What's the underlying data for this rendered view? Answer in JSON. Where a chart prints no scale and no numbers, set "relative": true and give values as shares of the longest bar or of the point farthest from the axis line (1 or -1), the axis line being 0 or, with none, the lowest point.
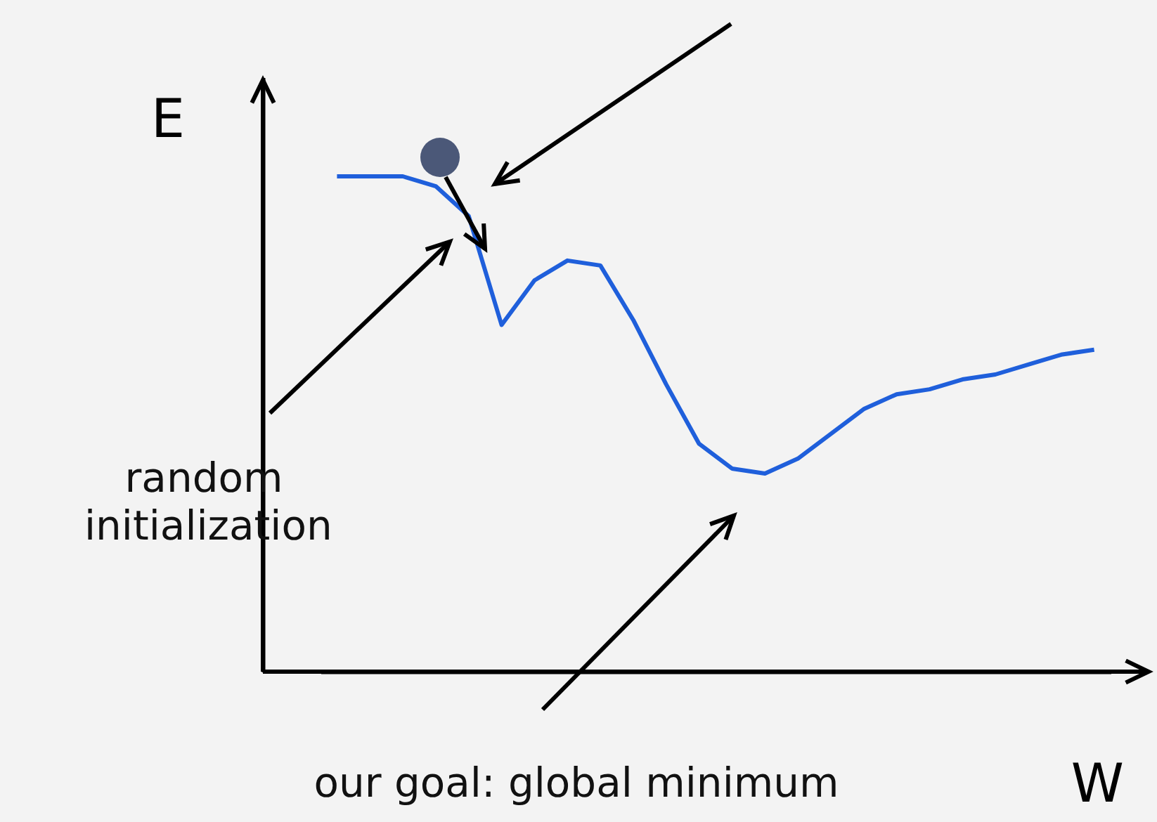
{
  "chart_data": {
    "type": "line",
    "relative": true,
    "xlabel": "W",
    "ylabel": "E",
    "grid": false,
    "categories": [
      null,
      null,
      null,
      null,
      null,
      null,
      null,
      null,
      null,
      null,
      null,
      null,
      null,
      null,
      null,
      null,
      null,
      null,
      null,
      null,
      null,
      null,
      null,
      null
    ],
    "series": [
      {
        "color": "#1f5fdb",
        "values": [
          1,
          1,
          1,
          0.98,
          0.92,
          0.7,
          0.79,
          0.83,
          0.82,
          0.71,
          0.58,
          0.46,
          0.41,
          0.4,
          0.43,
          0.48,
          0.53,
          0.56,
          0.57,
          0.59,
          0.6,
          0.62,
          0.64,
          0.65
        ]
      }
    ],
    "annotations": [
      "random initialization",
      "our goal: global minimum"
    ]
  }
}
